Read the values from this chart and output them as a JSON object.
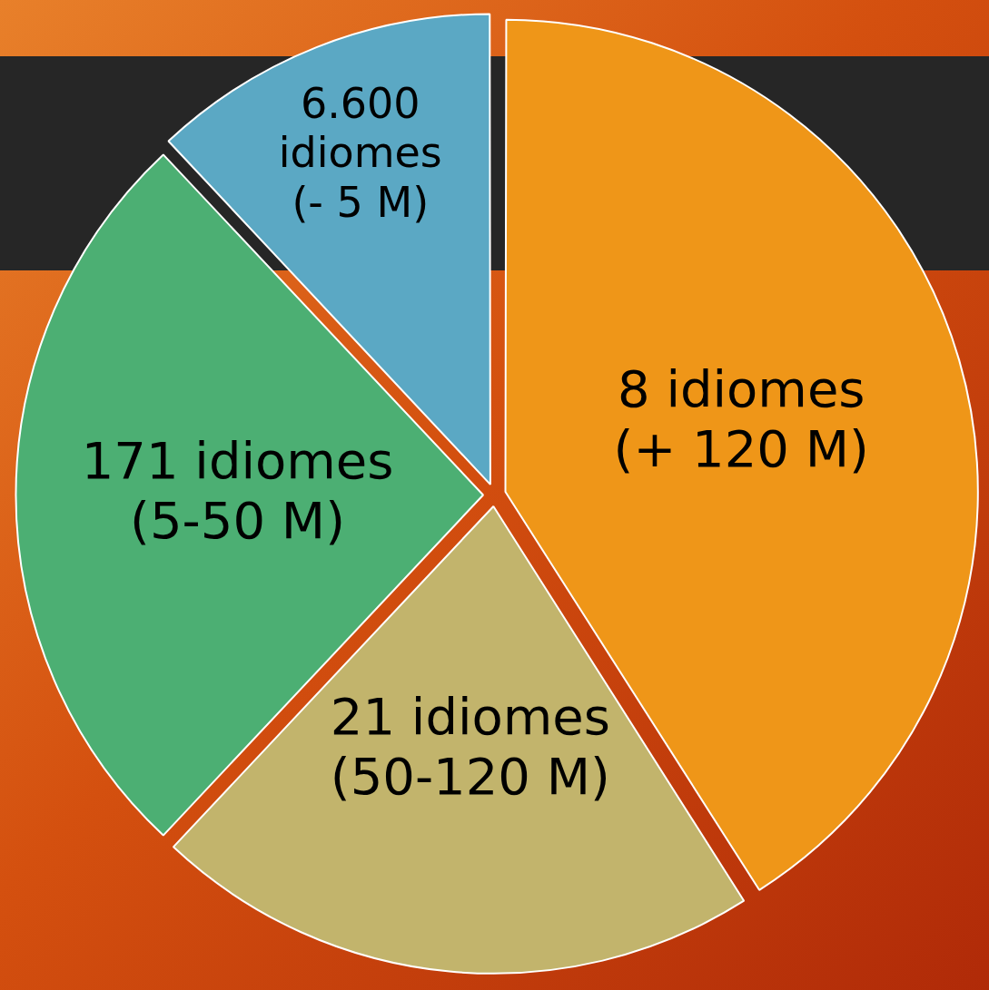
{
  "chart_data": {
    "type": "pie",
    "categories": [
      "8 idiomes\n(+ 120 M)",
      "21 idiomes\n(50-120 M)",
      "171 idiomes\n(5-50 M)",
      "6.600\nidiomes\n(- 5 M)"
    ],
    "values": [
      41,
      21,
      26,
      12
    ],
    "colors": [
      "#ef9618",
      "#c2b46c",
      "#4caf73",
      "#5ba8c4"
    ],
    "legend": false
  }
}
